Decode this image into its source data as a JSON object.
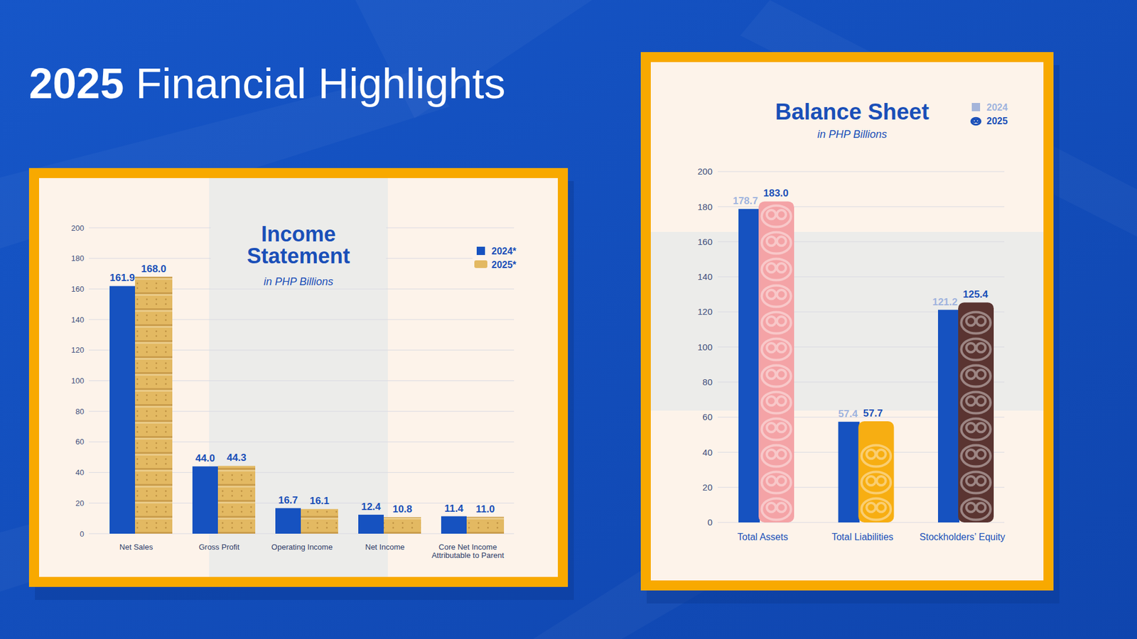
{
  "title": "2025 Financial Highlights",
  "chart_data": [
    {
      "type": "bar",
      "title": "Income Statement",
      "subtitle": "in PHP Billions",
      "categories": [
        "Net Sales",
        "Gross Profit",
        "Operating Income",
        "Net Income",
        "Core Net Income Attributable to Parent"
      ],
      "series": [
        {
          "name": "2024*",
          "color": "#1652c0",
          "values": [
            161.9,
            44.0,
            16.7,
            12.4,
            11.4
          ],
          "value_labels": [
            "161.9",
            "44.0",
            "16.7",
            "12.4",
            "11.4"
          ]
        },
        {
          "name": "2025*",
          "color": "#e3b962",
          "values": [
            168.0,
            44.3,
            16.1,
            10.8,
            11.0
          ],
          "value_labels": [
            "168.0",
            "44.3",
            "16.1",
            "10.8",
            "11.0"
          ]
        }
      ],
      "ylim": [
        0,
        200
      ],
      "yticks": [
        0,
        20,
        40,
        60,
        80,
        100,
        120,
        140,
        160,
        180,
        200
      ],
      "grid": true,
      "legend": "upper right",
      "data_labels": true
    },
    {
      "type": "bar",
      "title": "Balance Sheet",
      "subtitle": "in PHP Billions",
      "categories": [
        "Total Assets",
        "Total Liabilities",
        "Stockholders’ Equity"
      ],
      "series": [
        {
          "name": "2024",
          "color": "#1652c0",
          "values": [
            178.7,
            57.4,
            121.2
          ],
          "value_labels": [
            "178.7",
            "57.4",
            "121.2"
          ]
        },
        {
          "name": "2025",
          "color": "#1a4fb8",
          "colors": [
            "#f4a3a6",
            "#f7ae12",
            "#5a3431"
          ],
          "values": [
            183.0,
            57.7,
            125.4
          ],
          "value_labels": [
            "183.0",
            "57.7",
            "125.4"
          ]
        }
      ],
      "ylim": [
        0,
        200
      ],
      "yticks": [
        0,
        20,
        40,
        60,
        80,
        100,
        120,
        140,
        160,
        180,
        200
      ],
      "grid": true,
      "legend": "upper right",
      "data_labels": true
    }
  ]
}
